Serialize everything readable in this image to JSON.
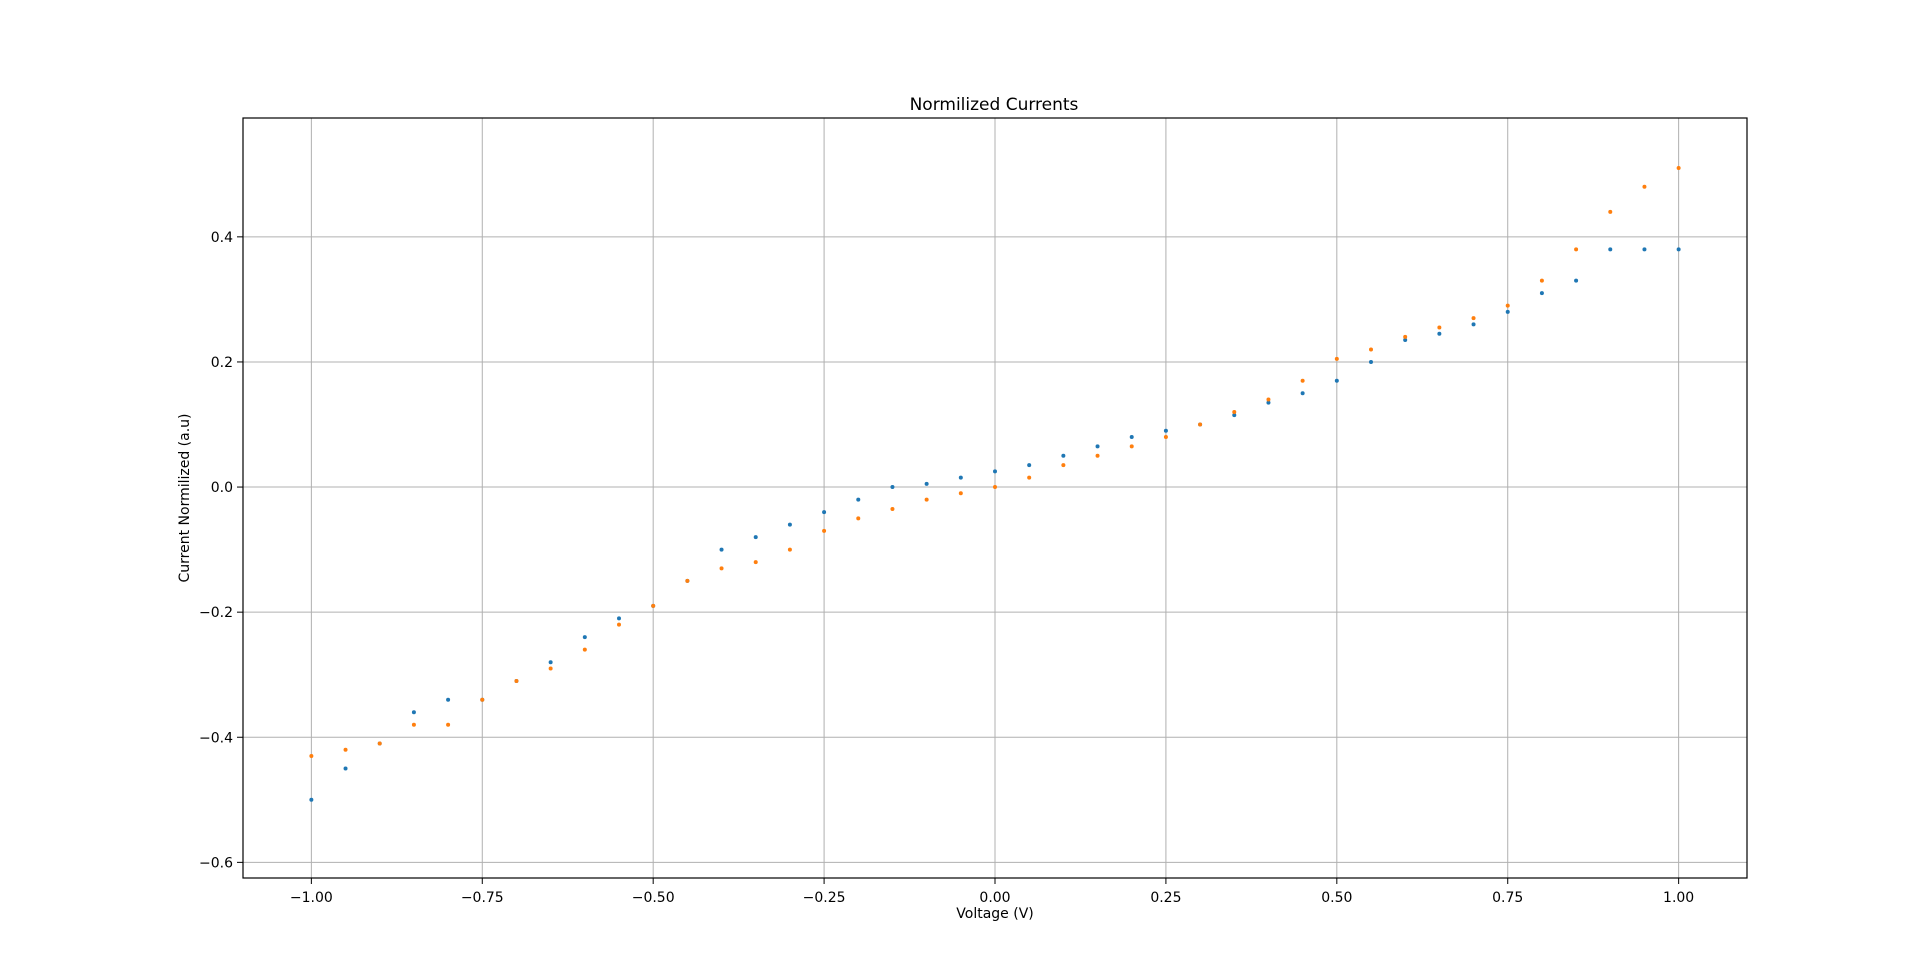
{
  "chart_data": {
    "type": "scatter",
    "title": "Normilized Currents",
    "xlabel": "Voltage (V)",
    "ylabel": "Current Normilized (a.u)",
    "xlim": [
      -1.1,
      1.1
    ],
    "ylim": [
      -0.625,
      0.59
    ],
    "grid": true,
    "legend": "none",
    "x_ticks": [
      {
        "value": -1.0,
        "label": "−1.00"
      },
      {
        "value": -0.75,
        "label": "−0.75"
      },
      {
        "value": -0.5,
        "label": "−0.50"
      },
      {
        "value": -0.25,
        "label": "−0.25"
      },
      {
        "value": 0.0,
        "label": "0.00"
      },
      {
        "value": 0.25,
        "label": "0.25"
      },
      {
        "value": 0.5,
        "label": "0.50"
      },
      {
        "value": 0.75,
        "label": "0.75"
      },
      {
        "value": 1.0,
        "label": "1.00"
      }
    ],
    "y_ticks": [
      {
        "value": -0.6,
        "label": "−0.6"
      },
      {
        "value": -0.4,
        "label": "−0.4"
      },
      {
        "value": -0.2,
        "label": "−0.2"
      },
      {
        "value": 0.0,
        "label": "0.0"
      },
      {
        "value": 0.2,
        "label": "0.2"
      },
      {
        "value": 0.4,
        "label": "0.4"
      }
    ],
    "series": [
      {
        "color": "#1f77b4",
        "x": [
          -1.0,
          -0.95,
          -0.9,
          -0.85,
          -0.8,
          -0.75,
          -0.7,
          -0.65,
          -0.6,
          -0.55,
          -0.5,
          -0.45,
          -0.4,
          -0.35,
          -0.3,
          -0.25,
          -0.2,
          -0.15,
          -0.1,
          -0.05,
          0.0,
          0.05,
          0.1,
          0.15,
          0.2,
          0.25,
          0.3,
          0.35,
          0.4,
          0.45,
          0.5,
          0.55,
          0.6,
          0.65,
          0.7,
          0.75,
          0.8,
          0.85,
          0.9,
          0.95,
          1.0
        ],
        "y": [
          -0.5,
          -0.45,
          -0.41,
          -0.36,
          -0.34,
          -0.34,
          -0.31,
          -0.28,
          -0.24,
          -0.21,
          -0.19,
          -0.15,
          -0.1,
          -0.08,
          -0.06,
          -0.04,
          -0.02,
          0.0,
          0.005,
          0.015,
          0.025,
          0.035,
          0.05,
          0.065,
          0.08,
          0.09,
          0.1,
          0.115,
          0.135,
          0.15,
          0.17,
          0.2,
          0.235,
          0.245,
          0.26,
          0.28,
          0.31,
          0.33,
          0.38,
          0.38,
          0.38
        ]
      },
      {
        "color": "#ff7f0e",
        "x": [
          -1.0,
          -0.95,
          -0.9,
          -0.85,
          -0.8,
          -0.75,
          -0.7,
          -0.65,
          -0.6,
          -0.55,
          -0.5,
          -0.45,
          -0.4,
          -0.35,
          -0.3,
          -0.25,
          -0.2,
          -0.15,
          -0.1,
          -0.05,
          0.0,
          0.05,
          0.1,
          0.15,
          0.2,
          0.25,
          0.3,
          0.35,
          0.4,
          0.45,
          0.5,
          0.55,
          0.6,
          0.65,
          0.7,
          0.75,
          0.8,
          0.85,
          0.9,
          0.95,
          1.0
        ],
        "y": [
          -0.43,
          -0.42,
          -0.41,
          -0.38,
          -0.38,
          -0.34,
          -0.31,
          -0.29,
          -0.26,
          -0.22,
          -0.19,
          -0.15,
          -0.13,
          -0.12,
          -0.1,
          -0.07,
          -0.05,
          -0.035,
          -0.02,
          -0.01,
          0.0,
          0.015,
          0.035,
          0.05,
          0.065,
          0.08,
          0.1,
          0.12,
          0.14,
          0.17,
          0.205,
          0.22,
          0.24,
          0.255,
          0.27,
          0.29,
          0.33,
          0.38,
          0.44,
          0.48,
          0.51
        ]
      }
    ]
  }
}
